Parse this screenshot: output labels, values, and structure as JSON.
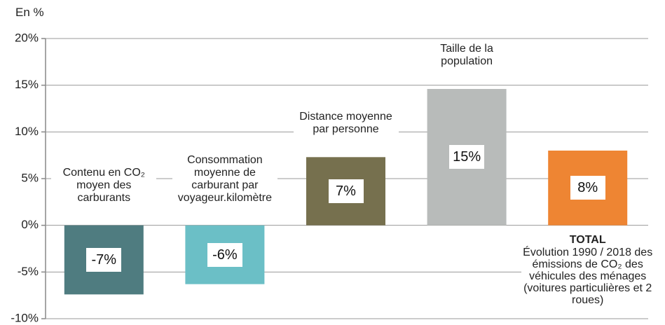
{
  "chart_data": {
    "type": "bar",
    "y_label": "En %",
    "categories": [
      "Contenu en CO₂ moyen des carburants",
      "Consommation moyenne de carburant par voyageur.kilomètre",
      "Distance moyenne par personne",
      "Taille de la population",
      "TOTAL"
    ],
    "annotation": "Évolution 1990 / 2018 des émissions de CO₂ des véhicules des ménages (voitures particulières et 2 roues)",
    "values": [
      -7.4,
      -6.3,
      7.3,
      14.6,
      8.0
    ],
    "value_labels": [
      "-7%",
      "-6%",
      "7%",
      "15%",
      "8%"
    ],
    "colors": [
      "#4f7c80",
      "#6bbfc6",
      "#76704e",
      "#b8bbba",
      "#ee8533"
    ],
    "ylim": [
      -10,
      20
    ],
    "yticks": [
      {
        "value": -10,
        "label": "-10%"
      },
      {
        "value": -5,
        "label": "-5%"
      },
      {
        "value": 0,
        "label": "0%"
      },
      {
        "value": 5,
        "label": "5%"
      },
      {
        "value": 10,
        "label": "10%"
      },
      {
        "value": 15,
        "label": "15%"
      },
      {
        "value": 20,
        "label": "20%"
      }
    ],
    "grid": true
  }
}
